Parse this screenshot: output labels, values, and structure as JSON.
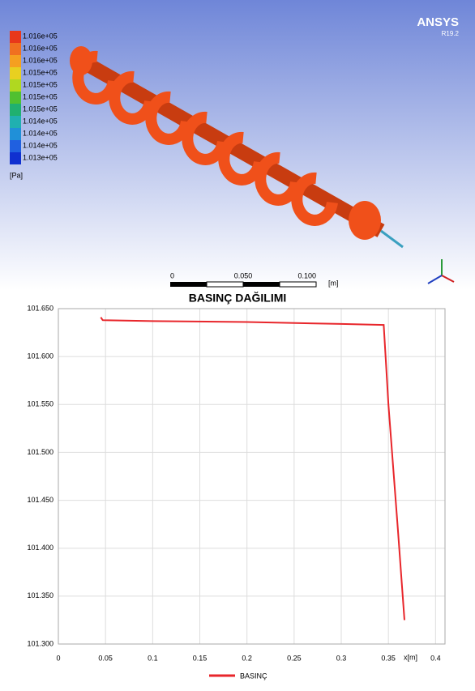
{
  "render": {
    "brand": "ANSYS",
    "version": "R19.2",
    "legend": {
      "labels": [
        "1.016e+05",
        "1.016e+05",
        "1.016e+05",
        "1.015e+05",
        "1.015e+05",
        "1.015e+05",
        "1.015e+05",
        "1.014e+05",
        "1.014e+05",
        "1.014e+05",
        "1.013e+05"
      ],
      "unit": "[Pa]"
    },
    "scale_bar": {
      "labels": [
        "0",
        "0.050",
        "0.100"
      ],
      "unit": "[m]"
    }
  },
  "chart_data": {
    "type": "line",
    "title": "BASINÇ DAĞILIMI",
    "x_label": "x[m]",
    "x": [
      0.045,
      0.047,
      0.1,
      0.2,
      0.3,
      0.345,
      0.35,
      0.36,
      0.367
    ],
    "series": [
      {
        "name": "BASINÇ",
        "color": "#e8262b",
        "values": [
          101.641,
          101.638,
          101.637,
          101.636,
          101.634,
          101.633,
          101.55,
          101.42,
          101.325
        ]
      }
    ],
    "xlim": [
      0,
      0.41
    ],
    "xticks": [
      0,
      0.05,
      0.1,
      0.15,
      0.2,
      0.25,
      0.3,
      0.35,
      0.4
    ],
    "ylim": [
      101.3,
      101.65
    ],
    "yticks": [
      {
        "value": 101.3,
        "label": "101.300"
      },
      {
        "value": 101.35,
        "label": "101.350"
      },
      {
        "value": 101.4,
        "label": "101.400"
      },
      {
        "value": 101.45,
        "label": "101.450"
      },
      {
        "value": 101.5,
        "label": "101.500"
      },
      {
        "value": 101.55,
        "label": "101.550"
      },
      {
        "value": 101.6,
        "label": "101.600"
      },
      {
        "value": 101.65,
        "label": "101.650"
      }
    ],
    "grid": true
  }
}
